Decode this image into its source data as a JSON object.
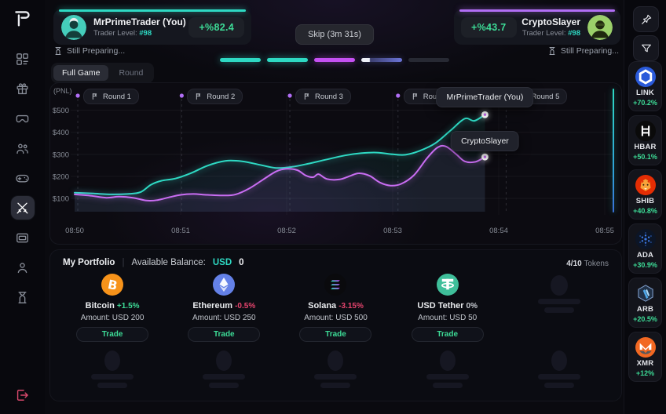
{
  "sidebar": {
    "logo_icon": "app-logo",
    "items": [
      {
        "icon": "dashboard-icon",
        "active": false
      },
      {
        "icon": "gift-icon",
        "active": false
      },
      {
        "icon": "vr-headset-icon",
        "active": false
      },
      {
        "icon": "teams-icon",
        "active": false
      },
      {
        "icon": "gamepad-icon",
        "active": false
      },
      {
        "icon": "battle-icon",
        "active": true
      },
      {
        "icon": "wallet-cards-icon",
        "active": false
      },
      {
        "icon": "profile-icon",
        "active": false
      },
      {
        "icon": "history-icon",
        "active": false
      }
    ],
    "logout_icon": "logout-icon"
  },
  "header": {
    "left_player": {
      "name": "MrPrimeTrader (You)",
      "level_label": "Trader Level:",
      "level_value": "#98",
      "pnl": "+%82.4",
      "status": "Still Preparing...",
      "accent": "#2ed9c3"
    },
    "right_player": {
      "name": "CryptoSlayer",
      "level_label": "Trader Level:",
      "level_value": "#98",
      "pnl": "+%43.7",
      "status": "Still Preparing...",
      "accent": "#b16ef5"
    },
    "skip_label": "Skip (3m 31s)",
    "round_progress": [
      {
        "state": "complete",
        "color": "#2ed9c3"
      },
      {
        "state": "complete",
        "color": "#2ed9c3"
      },
      {
        "state": "complete",
        "color": "#c550f2"
      },
      {
        "state": "active",
        "color": "#6b74d8"
      },
      {
        "state": "upcoming",
        "color": "#272933"
      }
    ],
    "view_toggle": {
      "active_label": "Full Game",
      "inactive_label": "Round"
    }
  },
  "chart_data": {
    "type": "line",
    "ylabel": "(PNL)",
    "x_ticks": [
      "08:50",
      "08:51",
      "08:52",
      "08:53",
      "08:54",
      "08:55"
    ],
    "x_values": [
      0,
      1,
      2,
      3,
      4,
      5
    ],
    "y_ticks": [
      "$500",
      "$400",
      "$300",
      "$200",
      "$100"
    ],
    "y_values": [
      500,
      400,
      300,
      200,
      100
    ],
    "ylim": [
      60,
      560
    ],
    "grid": true,
    "legend_position": "end-tooltips",
    "rounds": [
      {
        "label": "Round 1",
        "x": 0.03
      },
      {
        "label": "Round 2",
        "x": 1.01
      },
      {
        "label": "Round 3",
        "x": 2.03
      },
      {
        "label": "Round 4",
        "x": 3.05
      },
      {
        "label": "Round 5",
        "x": 4.07
      }
    ],
    "series": [
      {
        "name": "MrPrimeTrader (You)",
        "color": "#2ed9c3",
        "points": [
          [
            0,
            126
          ],
          [
            0.18,
            122
          ],
          [
            0.35,
            118
          ],
          [
            0.5,
            120
          ],
          [
            0.62,
            128
          ],
          [
            0.72,
            162
          ],
          [
            0.82,
            180
          ],
          [
            0.95,
            190
          ],
          [
            1.1,
            215
          ],
          [
            1.25,
            248
          ],
          [
            1.42,
            270
          ],
          [
            1.58,
            268
          ],
          [
            1.75,
            252
          ],
          [
            1.9,
            238
          ],
          [
            2.05,
            243
          ],
          [
            2.2,
            257
          ],
          [
            2.38,
            277
          ],
          [
            2.55,
            295
          ],
          [
            2.7,
            305
          ],
          [
            2.85,
            308
          ],
          [
            3.0,
            300
          ],
          [
            3.12,
            298
          ],
          [
            3.25,
            315
          ],
          [
            3.4,
            350
          ],
          [
            3.55,
            410
          ],
          [
            3.68,
            462
          ],
          [
            3.77,
            452
          ],
          [
            3.87,
            480
          ]
        ]
      },
      {
        "name": "CryptoSlayer",
        "color": "#c96df2",
        "points": [
          [
            0,
            118
          ],
          [
            0.15,
            112
          ],
          [
            0.3,
            103
          ],
          [
            0.42,
            108
          ],
          [
            0.55,
            103
          ],
          [
            0.68,
            90
          ],
          [
            0.78,
            92
          ],
          [
            0.9,
            106
          ],
          [
            1.0,
            116
          ],
          [
            1.12,
            120
          ],
          [
            1.25,
            116
          ],
          [
            1.4,
            113
          ],
          [
            1.52,
            118
          ],
          [
            1.65,
            146
          ],
          [
            1.78,
            186
          ],
          [
            1.9,
            222
          ],
          [
            2.0,
            234
          ],
          [
            2.1,
            228
          ],
          [
            2.18,
            204
          ],
          [
            2.25,
            196
          ],
          [
            2.3,
            210
          ],
          [
            2.38,
            188
          ],
          [
            2.5,
            186
          ],
          [
            2.6,
            202
          ],
          [
            2.68,
            214
          ],
          [
            2.78,
            203
          ],
          [
            2.88,
            172
          ],
          [
            2.98,
            158
          ],
          [
            3.08,
            166
          ],
          [
            3.2,
            205
          ],
          [
            3.32,
            280
          ],
          [
            3.42,
            330
          ],
          [
            3.5,
            336
          ],
          [
            3.6,
            300
          ],
          [
            3.68,
            268
          ],
          [
            3.78,
            266
          ],
          [
            3.87,
            288
          ]
        ]
      }
    ]
  },
  "portfolio": {
    "title": "My Portfolio",
    "divider": "|",
    "balance_label": "Available Balance:",
    "balance_currency": "USD",
    "balance_value": "0",
    "tokens_count": "4/10",
    "tokens_count_label": "Tokens",
    "tokens": [
      {
        "name": "Bitcoin",
        "change": "+1.5%",
        "trend": "up",
        "amount": "Amount: USD 200",
        "trade_label": "Trade",
        "icon": "bitcoin-icon",
        "color": "#f7931a"
      },
      {
        "name": "Ethereum",
        "change": "-0.5%",
        "trend": "down",
        "amount": "Amount: USD 250",
        "trade_label": "Trade",
        "icon": "ethereum-icon",
        "color": "#6481e7"
      },
      {
        "name": "Solana",
        "change": "-3.15%",
        "trend": "down",
        "amount": "Amount: USD 500",
        "trade_label": "Trade",
        "icon": "solana-icon",
        "color": "#0a0a0d"
      },
      {
        "name": "USD Tether",
        "change": "0%",
        "trend": "neutral",
        "amount": "Amount: USD 50",
        "trade_label": "Trade",
        "icon": "tether-icon",
        "color": "#3fbf9a"
      }
    ],
    "placeholders": {
      "row1": 1,
      "row2": 5
    }
  },
  "watchlist": {
    "pin_icon": "pin-icon",
    "filter_icon": "filter-icon",
    "items": [
      {
        "symbol": "LINK",
        "change": "+70.2%",
        "icon": "chainlink-icon",
        "color": "#2a5ada"
      },
      {
        "symbol": "HBAR",
        "change": "+50.1%",
        "icon": "hedera-icon",
        "color": "#0a0a0a"
      },
      {
        "symbol": "SHIB",
        "change": "+40.8%",
        "icon": "shiba-icon",
        "color": "#e42d04"
      },
      {
        "symbol": "ADA",
        "change": "+30.9%",
        "icon": "cardano-icon",
        "color": "#2f6bd8"
      },
      {
        "symbol": "ARB",
        "change": "+20.5%",
        "icon": "arbitrum-icon",
        "color": "#213147"
      },
      {
        "symbol": "XMR",
        "change": "+12%",
        "icon": "monero-icon",
        "color": "#f26822"
      }
    ]
  },
  "colors": {
    "up": "#3ddc97",
    "down": "#e5446d",
    "neutral": "#c9cdd3",
    "accent_teal": "#2ed9c3",
    "accent_purple": "#b16ef5"
  }
}
